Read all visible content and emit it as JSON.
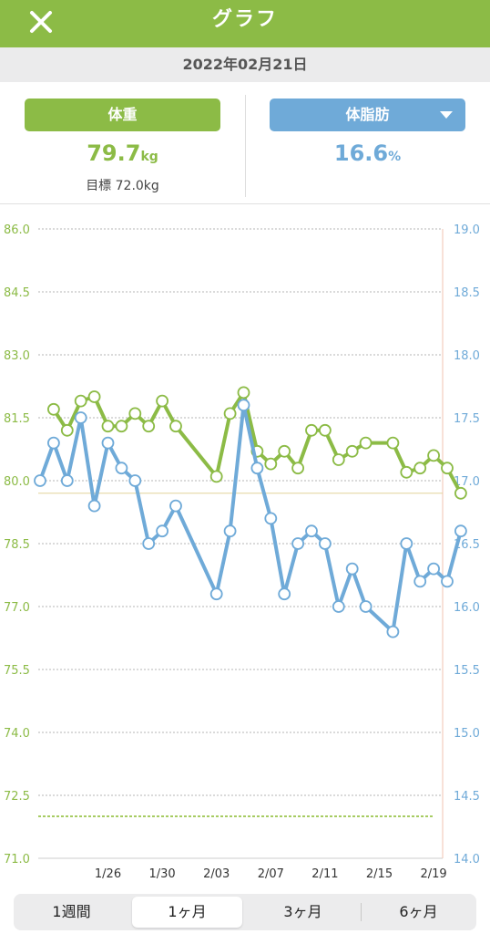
{
  "header": {
    "title": "グラフ",
    "close_icon": "close-icon"
  },
  "date_bar": {
    "text": "2022年02月21日"
  },
  "summary": {
    "weight": {
      "label": "体重",
      "value": "79.7",
      "unit": "kg",
      "goal_text": "目標 72.0kg"
    },
    "body_fat": {
      "label": "体脂肪",
      "value": "16.6",
      "unit": "%",
      "dropdown_icon": "chevron-down-icon"
    }
  },
  "colors": {
    "weight": "#8cbb46",
    "body_fat": "#6faad8",
    "goal_line": "#a7cc63",
    "current_line": "#e2d49a",
    "right_axis_line": "#f2c3b0"
  },
  "chart_data": {
    "type": "line",
    "title": "",
    "x_tick_labels": [
      "1/26",
      "1/30",
      "2/03",
      "2/07",
      "2/11",
      "2/15",
      "2/19"
    ],
    "y_left": {
      "range": [
        71.0,
        86.0
      ],
      "ticks": [
        "71.0",
        "72.5",
        "74.0",
        "75.5",
        "77.0",
        "78.5",
        "80.0",
        "81.5",
        "83.0",
        "84.5",
        "86.0"
      ]
    },
    "y_right": {
      "range": [
        14.0,
        19.0
      ],
      "ticks": [
        "14.0",
        "14.5",
        "15.0",
        "15.5",
        "16.0",
        "16.5",
        "17.0",
        "17.5",
        "18.0",
        "18.5",
        "19.0"
      ]
    },
    "goal_weight": 72.0,
    "current_weight": 79.7,
    "weight_series": [
      [
        "2022-01-22",
        81.7
      ],
      [
        "2022-01-23",
        81.2
      ],
      [
        "2022-01-24",
        81.9
      ],
      [
        "2022-01-25",
        82.0
      ],
      [
        "2022-01-26",
        81.3
      ],
      [
        "2022-01-27",
        81.3
      ],
      [
        "2022-01-28",
        81.6
      ],
      [
        "2022-01-29",
        81.3
      ],
      [
        "2022-01-30",
        81.9
      ],
      [
        "2022-01-31",
        81.3
      ],
      [
        "2022-02-03",
        80.1
      ],
      [
        "2022-02-04",
        81.6
      ],
      [
        "2022-02-05",
        82.1
      ],
      [
        "2022-02-06",
        80.7
      ],
      [
        "2022-02-07",
        80.4
      ],
      [
        "2022-02-08",
        80.7
      ],
      [
        "2022-02-09",
        80.3
      ],
      [
        "2022-02-10",
        81.2
      ],
      [
        "2022-02-11",
        81.2
      ],
      [
        "2022-02-12",
        80.5
      ],
      [
        "2022-02-13",
        80.7
      ],
      [
        "2022-02-14",
        80.9
      ],
      [
        "2022-02-16",
        80.9
      ],
      [
        "2022-02-17",
        80.2
      ],
      [
        "2022-02-18",
        80.3
      ],
      [
        "2022-02-19",
        80.6
      ],
      [
        "2022-02-20",
        80.3
      ],
      [
        "2022-02-21",
        79.7
      ]
    ],
    "body_fat_series": [
      [
        "2022-01-21",
        17.0
      ],
      [
        "2022-01-22",
        17.3
      ],
      [
        "2022-01-23",
        17.0
      ],
      [
        "2022-01-24",
        17.5
      ],
      [
        "2022-01-25",
        16.8
      ],
      [
        "2022-01-26",
        17.3
      ],
      [
        "2022-01-27",
        17.1
      ],
      [
        "2022-01-28",
        17.0
      ],
      [
        "2022-01-29",
        16.5
      ],
      [
        "2022-01-30",
        16.6
      ],
      [
        "2022-01-31",
        16.8
      ],
      [
        "2022-02-03",
        16.1
      ],
      [
        "2022-02-04",
        16.6
      ],
      [
        "2022-02-05",
        17.6
      ],
      [
        "2022-02-06",
        17.1
      ],
      [
        "2022-02-07",
        16.7
      ],
      [
        "2022-02-08",
        16.1
      ],
      [
        "2022-02-09",
        16.5
      ],
      [
        "2022-02-10",
        16.6
      ],
      [
        "2022-02-11",
        16.5
      ],
      [
        "2022-02-12",
        16.0
      ],
      [
        "2022-02-13",
        16.3
      ],
      [
        "2022-02-14",
        16.0
      ],
      [
        "2022-02-16",
        15.8
      ],
      [
        "2022-02-17",
        16.5
      ],
      [
        "2022-02-18",
        16.2
      ],
      [
        "2022-02-19",
        16.3
      ],
      [
        "2022-02-20",
        16.2
      ],
      [
        "2022-02-21",
        16.6
      ]
    ]
  },
  "period_tabs": [
    {
      "label": "1週間",
      "active": false
    },
    {
      "label": "1ヶ月",
      "active": true
    },
    {
      "label": "3ヶ月",
      "active": false
    },
    {
      "label": "6ヶ月",
      "active": false
    }
  ]
}
